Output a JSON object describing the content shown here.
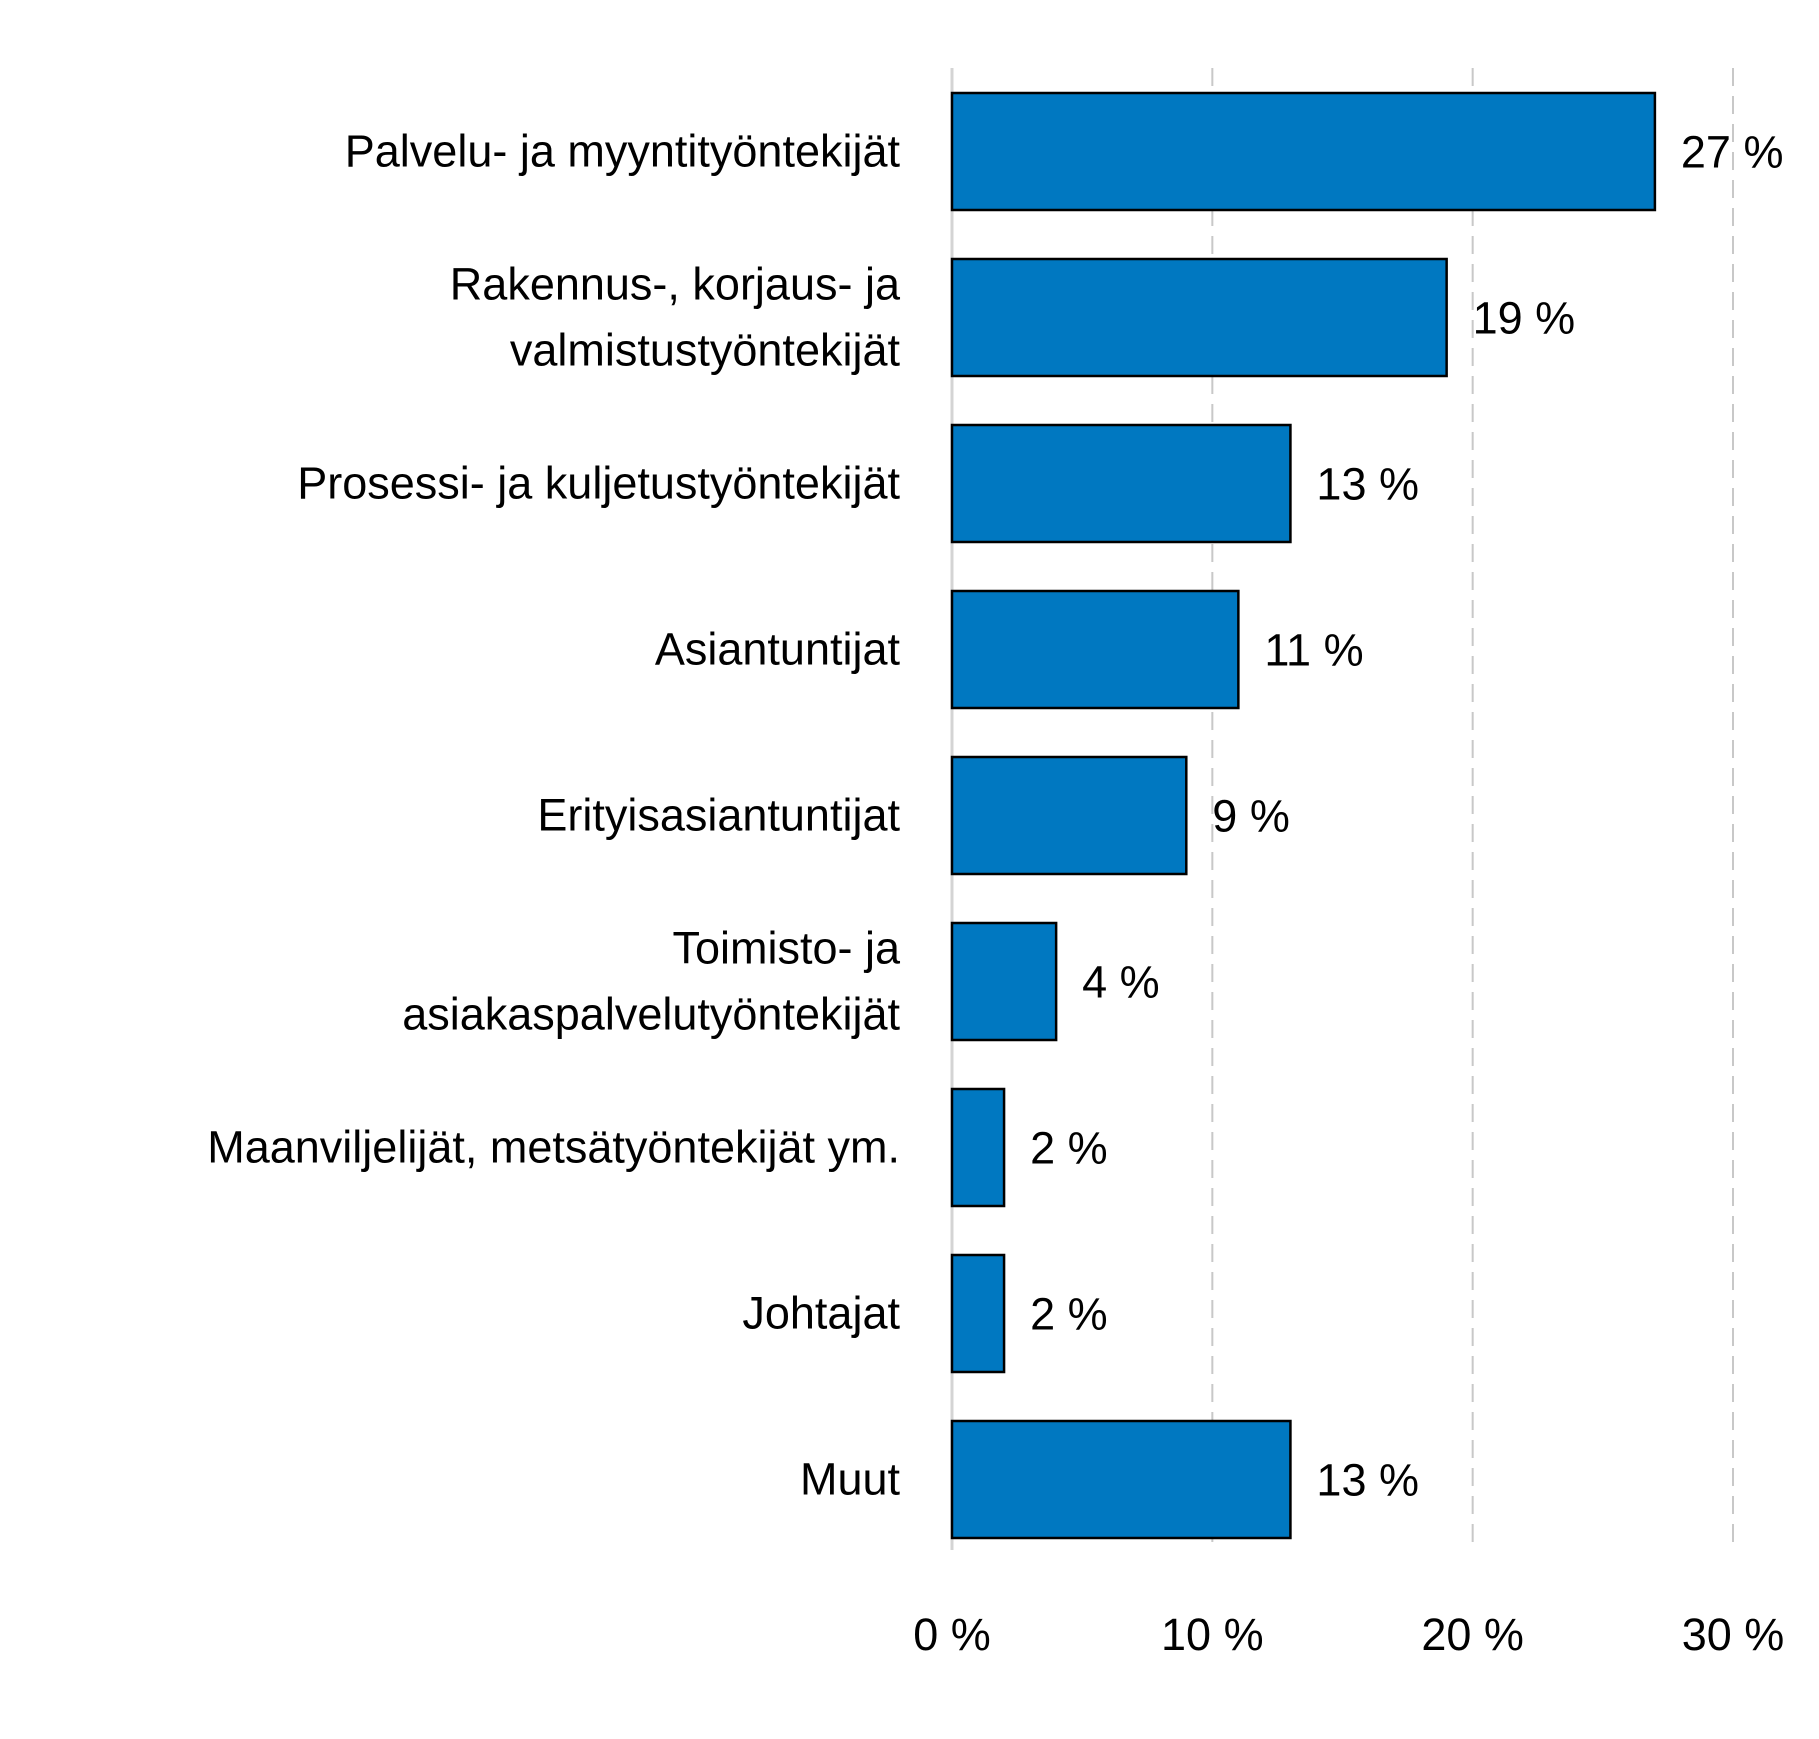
{
  "chart_data": {
    "type": "bar",
    "orientation": "horizontal",
    "categories": [
      [
        "Palvelu- ja myyntityöntekijät"
      ],
      [
        "Rakennus-, korjaus- ja",
        "valmistustyöntekijät"
      ],
      [
        "Prosessi- ja kuljetustyöntekijät"
      ],
      [
        "Asiantuntijat"
      ],
      [
        "Erityisasiantuntijat"
      ],
      [
        "Toimisto- ja",
        "asiakaspalvelutyöntekijät"
      ],
      [
        "Maanviljelijät, metsätyöntekijät ym."
      ],
      [
        "Johtajat"
      ],
      [
        "Muut"
      ]
    ],
    "values": [
      27,
      19,
      13,
      11,
      9,
      4,
      2,
      2,
      13
    ],
    "value_labels": [
      "27 %",
      "19 %",
      "13 %",
      "11 %",
      "9 %",
      "4 %",
      "2 %",
      "2 %",
      "13 %"
    ],
    "xlim": [
      0,
      30
    ],
    "xticks": [
      0,
      10,
      20,
      30
    ],
    "xtick_labels": [
      "0 %",
      "10 %",
      "20 %",
      "30 %"
    ],
    "title": "",
    "xlabel": "",
    "ylabel": "",
    "grid": "vertical dashed",
    "legend": "none",
    "bar_color": "#0078c1",
    "bar_outline_color": "#000000"
  }
}
